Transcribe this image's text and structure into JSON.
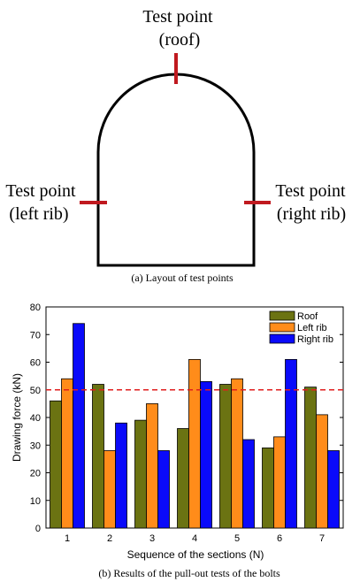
{
  "layout_figure": {
    "labels": {
      "roof": [
        "Test point",
        "(roof)"
      ],
      "left": [
        "Test point",
        "(left rib)"
      ],
      "right": [
        "Test point",
        "(right rib)"
      ]
    },
    "caption": "(a) Layout of test points",
    "marker_color": "#c0191f"
  },
  "bar_figure": {
    "caption": "(b) Results of the pull-out tests of the bolts"
  },
  "chart_data": {
    "type": "bar",
    "xlabel": "Sequence of the sections (N)",
    "ylabel": "Drawing force  (kN)",
    "categories": [
      "1",
      "2",
      "3",
      "4",
      "5",
      "6",
      "7"
    ],
    "ylim": [
      0,
      80
    ],
    "yticks": [
      "0",
      "10",
      "20",
      "30",
      "40",
      "50",
      "60",
      "70",
      "80"
    ],
    "series": [
      {
        "name": "Roof",
        "color": "#6b7312",
        "values": [
          46,
          52,
          39,
          36,
          52,
          29,
          51
        ]
      },
      {
        "name": "Left rib",
        "color": "#ff8c1a",
        "values": [
          54,
          28,
          45,
          61,
          54,
          33,
          41
        ]
      },
      {
        "name": "Right rib",
        "color": "#0a0afa",
        "values": [
          74,
          38,
          28,
          53,
          32,
          61,
          28
        ]
      }
    ],
    "reference_line": {
      "value": 50,
      "color": "#e01e1e",
      "style": "dashed"
    },
    "legend": "top-right",
    "grid": false
  }
}
